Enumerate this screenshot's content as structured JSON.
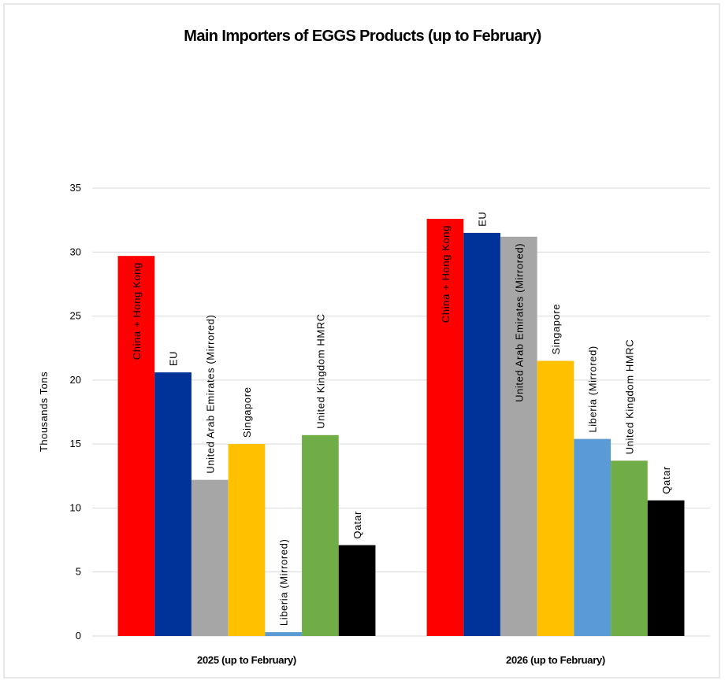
{
  "chart_data": {
    "type": "bar",
    "title": "Main Importers of EGGS Products (up to February)",
    "y_label": "Thousands Tons",
    "categories": [
      "2025 (up to February)",
      "2026 (up to February)"
    ],
    "series": [
      {
        "name": "China + Hong Kong",
        "color": "#ff0000",
        "values": [
          29.7,
          32.6
        ]
      },
      {
        "name": "EU",
        "color": "#003399",
        "values": [
          20.6,
          31.5
        ]
      },
      {
        "name": "United Arab Emirates (Mirrored)",
        "color": "#a6a6a6",
        "values": [
          12.2,
          31.2
        ]
      },
      {
        "name": "Singapore",
        "color": "#ffc000",
        "values": [
          15.0,
          21.5
        ]
      },
      {
        "name": "Liberia (Mirrored)",
        "color": "#5b9bd5",
        "values": [
          0.3,
          15.4
        ]
      },
      {
        "name": "United Kingdom HMRC",
        "color": "#70ad47",
        "values": [
          15.7,
          13.7
        ]
      },
      {
        "name": "Qatar",
        "color": "#000000",
        "values": [
          7.1,
          10.6
        ]
      }
    ],
    "ylim": [
      0,
      35
    ],
    "yticks": [
      0,
      5,
      10,
      15,
      20,
      25,
      30,
      35
    ],
    "grid": true
  }
}
